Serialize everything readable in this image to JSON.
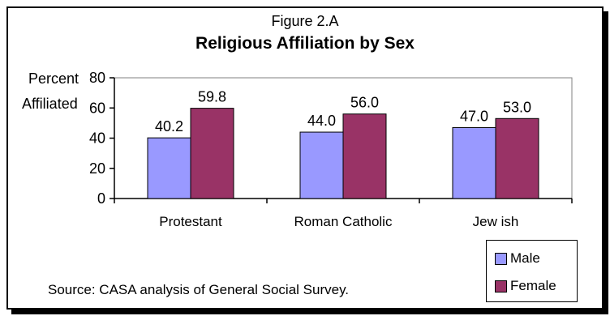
{
  "figure_label": "Figure 2.A",
  "source_text": "Source: CASA analysis of General Social Survey.",
  "colors": {
    "male": "#9999FF",
    "female": "#993366",
    "axis": "#000000"
  },
  "chart_data": {
    "type": "bar",
    "title": "Religious Affiliation by Sex",
    "ylabel_line1": "Percent",
    "ylabel_line2": "Affiliated",
    "xlabel": "",
    "ylim": [
      0,
      80
    ],
    "yticks": [
      "0",
      "20",
      "40",
      "60",
      "80"
    ],
    "categories": [
      "Protestant",
      "Roman Catholic",
      "Jew ish"
    ],
    "series": [
      {
        "name": "Male",
        "values": [
          40.2,
          44.0,
          47.0
        ],
        "labels": [
          "40.2",
          "44.0",
          "47.0"
        ]
      },
      {
        "name": "Female",
        "values": [
          59.8,
          56.0,
          53.0
        ],
        "labels": [
          "59.8",
          "56.0",
          "53.0"
        ]
      }
    ],
    "legend_position": "bottom-right",
    "grid": false
  }
}
